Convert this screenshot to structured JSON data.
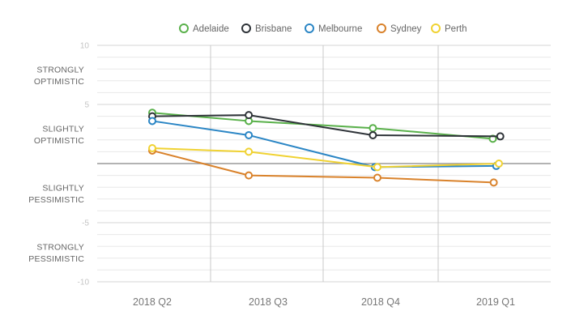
{
  "chart_data": {
    "type": "line",
    "categories": [
      "2018 Q2",
      "2018 Q3",
      "2018 Q4",
      "2019 Q1"
    ],
    "ylim": [
      -10,
      10
    ],
    "y_ticks": [
      10,
      5,
      -5,
      -10
    ],
    "sentiment_labels": [
      {
        "value": 7.5,
        "lines": [
          "STRONGLY",
          "OPTIMISTIC"
        ]
      },
      {
        "value": 2.5,
        "lines": [
          "SLIGHTLY",
          "OPTIMISTIC"
        ]
      },
      {
        "value": -2.5,
        "lines": [
          "SLIGHTLY",
          "PESSIMISTIC"
        ]
      },
      {
        "value": -7.5,
        "lines": [
          "STRONGLY",
          "PESSIMISTIC"
        ]
      }
    ],
    "legend_position": "top-center",
    "grid": true,
    "series": [
      {
        "name": "Adelaide",
        "color": "#5ab14b",
        "x": [
          0.0,
          0.833,
          1.931,
          2.975
        ],
        "values": [
          4.3,
          3.6,
          3.0,
          2.1
        ]
      },
      {
        "name": "Brisbane",
        "color": "#2e3338",
        "x": [
          0.0,
          0.833,
          1.931,
          3.04
        ],
        "values": [
          4.0,
          4.1,
          2.4,
          2.3
        ]
      },
      {
        "name": "Melbourne",
        "color": "#2b86c5",
        "x": [
          0.0,
          0.833,
          1.948,
          3.005
        ],
        "values": [
          3.6,
          2.4,
          -0.3,
          -0.2
        ]
      },
      {
        "name": "Sydney",
        "color": "#d9822b",
        "x": [
          0.0,
          0.833,
          1.971,
          2.983
        ],
        "values": [
          1.1,
          -1.0,
          -1.2,
          -1.6
        ]
      },
      {
        "name": "Perth",
        "color": "#f0d232",
        "x": [
          0.0,
          0.833,
          1.971,
          3.028
        ],
        "values": [
          1.3,
          1.0,
          -0.3,
          0.0
        ]
      }
    ]
  }
}
